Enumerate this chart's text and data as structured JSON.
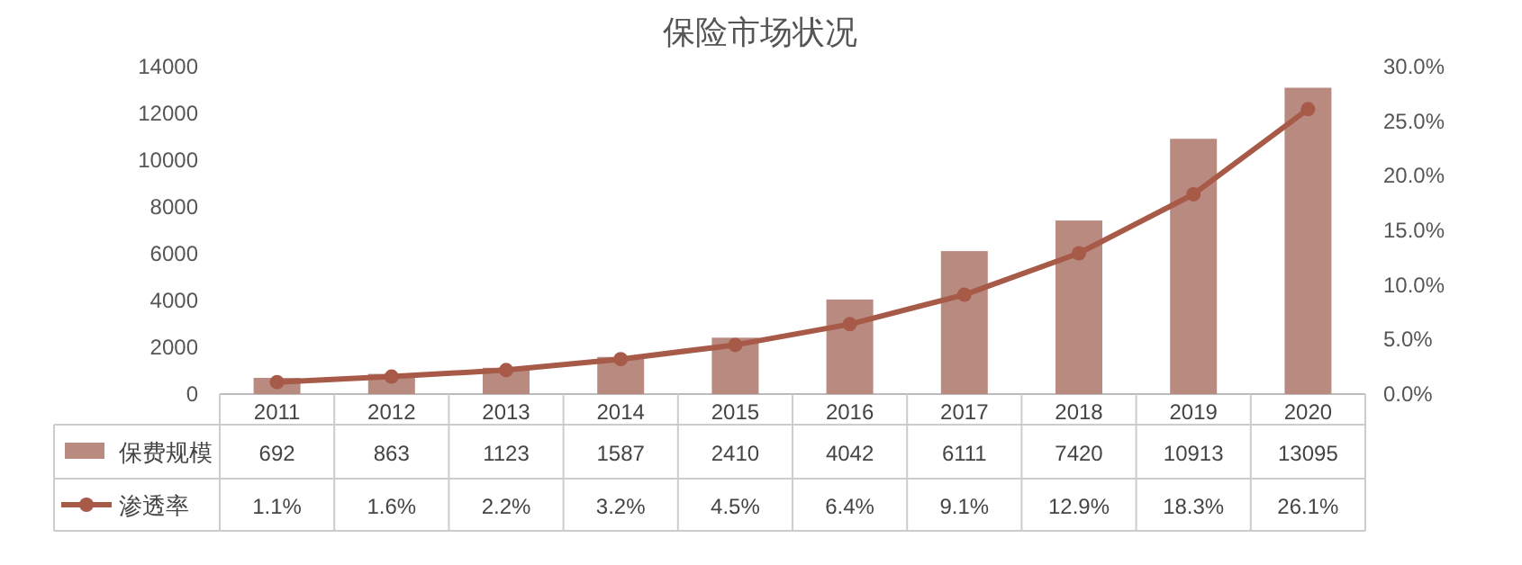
{
  "chart_data": {
    "type": "bar",
    "title": "保险市场状况",
    "categories": [
      "2011",
      "2012",
      "2013",
      "2014",
      "2015",
      "2016",
      "2017",
      "2018",
      "2019",
      "2020"
    ],
    "series": [
      {
        "name": "保费规模",
        "color": "#b98a80",
        "values": [
          692,
          863,
          1123,
          1587,
          2410,
          4042,
          6111,
          7420,
          10913,
          13095
        ]
      },
      {
        "name": "渗透率",
        "type": "line",
        "axis": "y2",
        "color": "#a85a48",
        "values": [
          1.1,
          1.6,
          2.2,
          3.2,
          4.5,
          6.4,
          9.1,
          12.9,
          18.3,
          26.1
        ],
        "value_labels": [
          "1.1%",
          "1.6%",
          "2.2%",
          "3.2%",
          "4.5%",
          "6.4%",
          "9.1%",
          "12.9%",
          "18.3%",
          "26.1%"
        ]
      }
    ],
    "ylim": [
      0,
      14000
    ],
    "yticks": [
      0,
      2000,
      4000,
      6000,
      8000,
      10000,
      12000,
      14000
    ],
    "y2lim": [
      0,
      30
    ],
    "y2ticks": [
      {
        "value": 0,
        "label": "0.0%"
      },
      {
        "value": 5,
        "label": "5.0%"
      },
      {
        "value": 10,
        "label": "10.0%"
      },
      {
        "value": 15,
        "label": "15.0%"
      },
      {
        "value": 20,
        "label": "20.0%"
      },
      {
        "value": 25,
        "label": "25.0%"
      },
      {
        "value": 30,
        "label": "30.0%"
      }
    ],
    "data_labels": true,
    "legend": "bottom",
    "marker": "circle",
    "line_style": "solid",
    "grid": false
  }
}
